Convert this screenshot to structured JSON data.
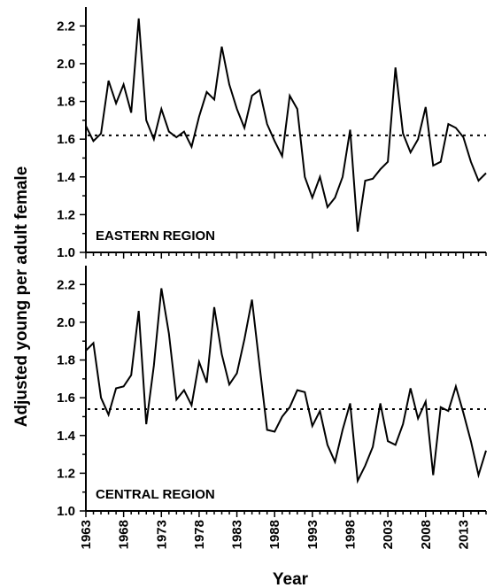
{
  "figure": {
    "ylabel": "Adjusted young per adult female",
    "xlabel": "Year"
  },
  "chart_data": [
    {
      "type": "line",
      "panel": "top",
      "annotation": "EASTERN REGION",
      "xlim": [
        1963,
        2016
      ],
      "ylim": [
        1.0,
        2.3
      ],
      "yticks": [
        1.0,
        1.2,
        1.4,
        1.6,
        1.8,
        2.0,
        2.2
      ],
      "ytick_labels": [
        "1.0",
        "1.2",
        "1.4",
        "1.6",
        "1.8",
        "2.0",
        "2.2"
      ],
      "reference_line": 1.62,
      "x": [
        1963,
        1964,
        1965,
        1966,
        1967,
        1968,
        1969,
        1970,
        1971,
        1972,
        1973,
        1974,
        1975,
        1976,
        1977,
        1978,
        1979,
        1980,
        1981,
        1982,
        1983,
        1984,
        1985,
        1986,
        1987,
        1988,
        1989,
        1990,
        1991,
        1992,
        1993,
        1994,
        1995,
        1996,
        1997,
        1998,
        1999,
        2000,
        2001,
        2002,
        2003,
        2004,
        2005,
        2006,
        2007,
        2008,
        2009,
        2010,
        2011,
        2012,
        2013,
        2014,
        2015,
        2016
      ],
      "series": [
        {
          "values": [
            1.67,
            1.59,
            1.63,
            1.91,
            1.79,
            1.89,
            1.74,
            2.24,
            1.7,
            1.6,
            1.76,
            1.64,
            1.61,
            1.64,
            1.56,
            1.72,
            1.85,
            1.81,
            2.09,
            1.89,
            1.76,
            1.66,
            1.83,
            1.86,
            1.68,
            1.59,
            1.51,
            1.83,
            1.76,
            1.4,
            1.29,
            1.4,
            1.24,
            1.29,
            1.4,
            1.65,
            1.11,
            1.38,
            1.39,
            1.44,
            1.48,
            1.98,
            1.63,
            1.53,
            1.6,
            1.77,
            1.46,
            1.48,
            1.68,
            1.66,
            1.61,
            1.48,
            1.38,
            1.42
          ]
        }
      ]
    },
    {
      "type": "line",
      "panel": "bottom",
      "annotation": "CENTRAL REGION",
      "xlim": [
        1963,
        2016
      ],
      "ylim": [
        1.0,
        2.3
      ],
      "yticks": [
        1.0,
        1.2,
        1.4,
        1.6,
        1.8,
        2.0,
        2.2
      ],
      "ytick_labels": [
        "1.0",
        "1.2",
        "1.4",
        "1.6",
        "1.8",
        "2.0",
        "2.2"
      ],
      "xticks": [
        1963,
        1968,
        1973,
        1978,
        1983,
        1988,
        1993,
        1998,
        2003,
        2008,
        2013
      ],
      "xtick_labels": [
        "1963",
        "1968",
        "1973",
        "1978",
        "1983",
        "1988",
        "1993",
        "1998",
        "2003",
        "2008",
        "2013"
      ],
      "reference_line": 1.54,
      "x": [
        1963,
        1964,
        1965,
        1966,
        1967,
        1968,
        1969,
        1970,
        1971,
        1972,
        1973,
        1974,
        1975,
        1976,
        1977,
        1978,
        1979,
        1980,
        1981,
        1982,
        1983,
        1984,
        1985,
        1986,
        1987,
        1988,
        1989,
        1990,
        1991,
        1992,
        1993,
        1994,
        1995,
        1996,
        1997,
        1998,
        1999,
        2000,
        2001,
        2002,
        2003,
        2004,
        2005,
        2006,
        2007,
        2008,
        2009,
        2010,
        2011,
        2012,
        2013,
        2014,
        2015,
        2016
      ],
      "series": [
        {
          "values": [
            1.85,
            1.89,
            1.6,
            1.51,
            1.65,
            1.66,
            1.72,
            2.06,
            1.46,
            1.77,
            2.18,
            1.94,
            1.59,
            1.64,
            1.56,
            1.79,
            1.68,
            2.08,
            1.83,
            1.67,
            1.73,
            1.91,
            2.12,
            1.77,
            1.43,
            1.42,
            1.5,
            1.55,
            1.64,
            1.63,
            1.45,
            1.53,
            1.35,
            1.26,
            1.43,
            1.57,
            1.16,
            1.24,
            1.34,
            1.57,
            1.37,
            1.35,
            1.46,
            1.65,
            1.49,
            1.58,
            1.19,
            1.55,
            1.53,
            1.66,
            1.52,
            1.37,
            1.19,
            1.32
          ]
        }
      ]
    }
  ]
}
